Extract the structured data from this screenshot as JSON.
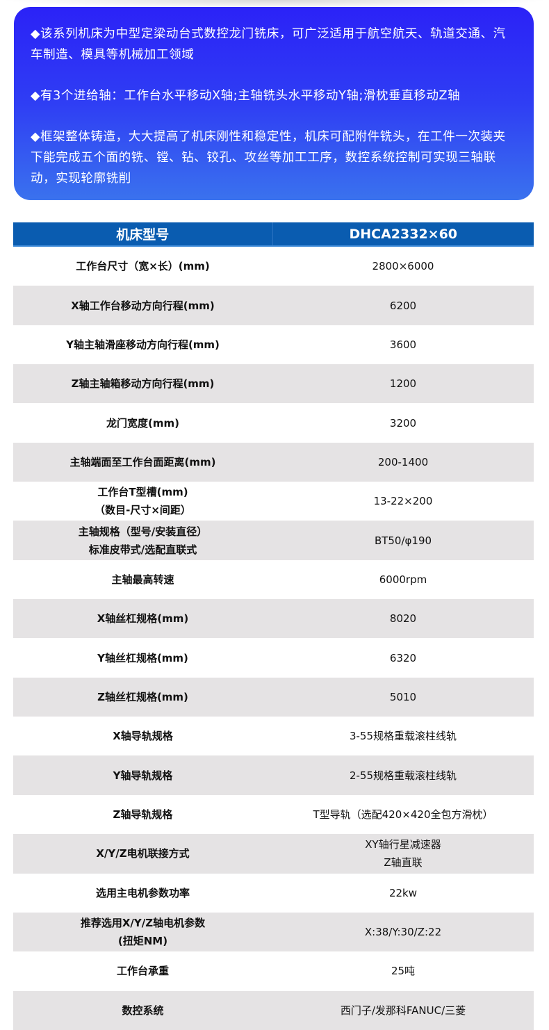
{
  "intro": {
    "paragraphs": [
      "◆该系列机床为中型定梁动台式数控龙门铣床，可广泛适用于航空航天、轨道交通、汽车制造、模具等机械加工领域",
      "◆有3个进给轴：工作台水平移动X轴;主轴铣头水平移动Y轴;滑枕垂直移动Z轴",
      "◆框架整体铸造，大大提高了机床刚性和稳定性，机床可配附件铣头，在工件一次装夹下能完成五个面的铣、镗、钻、铰孔、攻丝等加工工序，数控系统控制可实现三轴联动，实现轮廓铣削"
    ]
  },
  "table": {
    "header": [
      "机床型号",
      "DHCA2332×60"
    ],
    "rows": [
      {
        "key": [
          "工作台尺寸（宽×长）(mm)"
        ],
        "value": [
          "2800×6000"
        ]
      },
      {
        "key": [
          "X轴工作台移动方向行程(mm)"
        ],
        "value": [
          "6200"
        ]
      },
      {
        "key": [
          "Y轴主轴滑座移动方向行程(mm)"
        ],
        "value": [
          "3600"
        ]
      },
      {
        "key": [
          "Z轴主轴箱移动方向行程(mm)"
        ],
        "value": [
          "1200"
        ]
      },
      {
        "key": [
          "龙门宽度(mm)"
        ],
        "value": [
          "3200"
        ]
      },
      {
        "key": [
          "主轴端面至工作台面距离(mm)"
        ],
        "value": [
          "200-1400"
        ]
      },
      {
        "key": [
          "工作台T型槽(mm)",
          "（数目-尺寸×间距）"
        ],
        "value": [
          "13-22×200"
        ]
      },
      {
        "key": [
          "主轴规格（型号/安装直径）",
          "标准皮带式/选配直联式"
        ],
        "value": [
          "BT50/φ190"
        ]
      },
      {
        "key": [
          "主轴最高转速"
        ],
        "value": [
          "6000rpm"
        ]
      },
      {
        "key": [
          "X轴丝杠规格(mm)"
        ],
        "value": [
          "8020"
        ]
      },
      {
        "key": [
          "Y轴丝杠规格(mm)"
        ],
        "value": [
          "6320"
        ]
      },
      {
        "key": [
          "Z轴丝杠规格(mm)"
        ],
        "value": [
          "5010"
        ]
      },
      {
        "key": [
          "X轴导轨规格"
        ],
        "value": [
          "3-55规格重载滚柱线轨"
        ]
      },
      {
        "key": [
          "Y轴导轨规格"
        ],
        "value": [
          "2-55规格重载滚柱线轨"
        ]
      },
      {
        "key": [
          "Z轴导轨规格"
        ],
        "value": [
          "T型导轨（选配420×420全包方滑枕）"
        ]
      },
      {
        "key": [
          "X/Y/Z电机联接方式"
        ],
        "value": [
          "XY轴行星减速器",
          "Z轴直联"
        ]
      },
      {
        "key": [
          "选用主电机参数功率"
        ],
        "value": [
          "22kw"
        ]
      },
      {
        "key": [
          "推荐选用X/Y/Z轴电机参数",
          "(扭矩NM)"
        ],
        "value": [
          "X:38/Y:30/Z:22"
        ]
      },
      {
        "key": [
          "工作台承重"
        ],
        "value": [
          "25吨"
        ]
      },
      {
        "key": [
          "数控系统"
        ],
        "value": [
          "西门子/发那科FANUC/三菱"
        ]
      }
    ]
  }
}
